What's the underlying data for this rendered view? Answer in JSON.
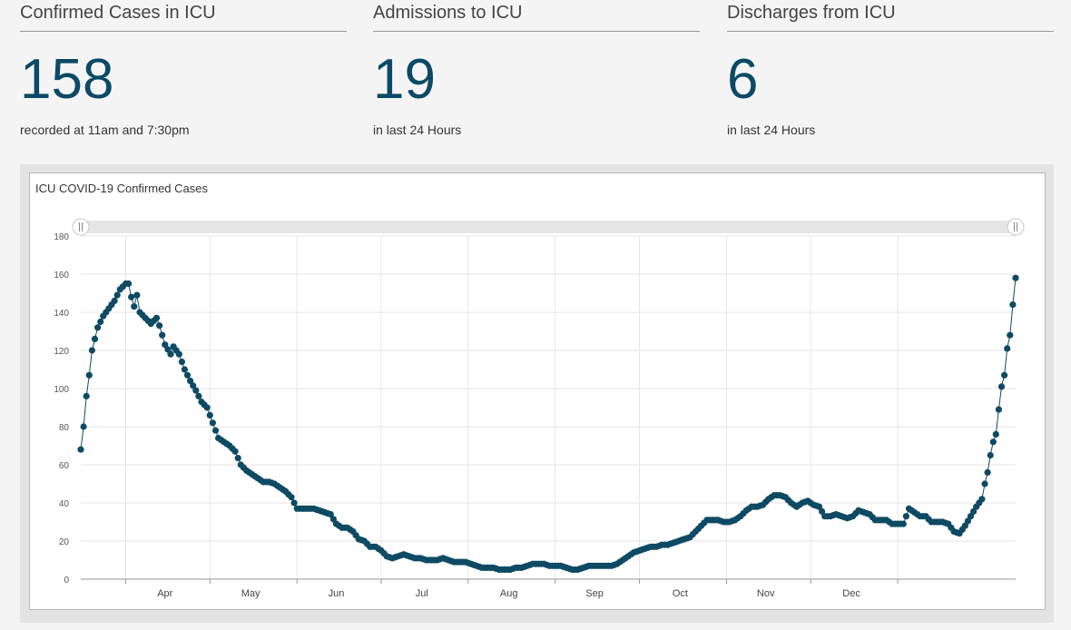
{
  "stats": [
    {
      "title": "Confirmed Cases in ICU",
      "value": "158",
      "subtitle": "recorded at 11am and 7:30pm"
    },
    {
      "title": "Admissions to ICU",
      "value": "19",
      "subtitle": "in last 24 Hours"
    },
    {
      "title": "Discharges from ICU",
      "value": "6",
      "subtitle": "in last 24 Hours"
    }
  ],
  "chart": {
    "title": "ICU COVID-19 Confirmed Cases"
  },
  "colors": {
    "accent": "#0b4a66",
    "marker": "#0e4a63",
    "grid": "#e6e6e6",
    "scrollbar": "#e6e6e6"
  },
  "chart_data": {
    "type": "line",
    "title": "ICU COVID-19 Confirmed Cases",
    "xlabel": "",
    "ylabel": "",
    "ylim": [
      0,
      180
    ],
    "y_ticks": [
      0,
      20,
      40,
      60,
      80,
      100,
      120,
      140,
      160,
      180
    ],
    "x_tick_labels": [
      "Apr",
      "May",
      "Jun",
      "Jul",
      "Aug",
      "Sep",
      "Oct",
      "Nov",
      "Dec"
    ],
    "grid": true,
    "markers": true,
    "anchors": [
      [
        0,
        68
      ],
      [
        1,
        80
      ],
      [
        2,
        96
      ],
      [
        3,
        107
      ],
      [
        4,
        120
      ],
      [
        6,
        132
      ],
      [
        8,
        138
      ],
      [
        10,
        142
      ],
      [
        12,
        146
      ],
      [
        14,
        152
      ],
      [
        16,
        155
      ],
      [
        17,
        155
      ],
      [
        18,
        148
      ],
      [
        19,
        143
      ],
      [
        20,
        149
      ],
      [
        21,
        140
      ],
      [
        23,
        137
      ],
      [
        25,
        134
      ],
      [
        27,
        137
      ],
      [
        28,
        133
      ],
      [
        30,
        123
      ],
      [
        32,
        118
      ],
      [
        33,
        122
      ],
      [
        35,
        118
      ],
      [
        37,
        110
      ],
      [
        39,
        104
      ],
      [
        41,
        99
      ],
      [
        43,
        93
      ],
      [
        45,
        90
      ],
      [
        47,
        82
      ],
      [
        49,
        74
      ],
      [
        51,
        72
      ],
      [
        53,
        70
      ],
      [
        55,
        67
      ],
      [
        57,
        60
      ],
      [
        59,
        57
      ],
      [
        61,
        55
      ],
      [
        63,
        53
      ],
      [
        65,
        51
      ],
      [
        67,
        51
      ],
      [
        69,
        50
      ],
      [
        71,
        48
      ],
      [
        73,
        46
      ],
      [
        75,
        43
      ],
      [
        77,
        37
      ],
      [
        79,
        37
      ],
      [
        81,
        37
      ],
      [
        83,
        37
      ],
      [
        85,
        36
      ],
      [
        87,
        35
      ],
      [
        89,
        34
      ],
      [
        91,
        29
      ],
      [
        93,
        27
      ],
      [
        95,
        27
      ],
      [
        97,
        25
      ],
      [
        99,
        21
      ],
      [
        101,
        20
      ],
      [
        103,
        17
      ],
      [
        105,
        17
      ],
      [
        107,
        15
      ],
      [
        109,
        12
      ],
      [
        111,
        11
      ],
      [
        113,
        12
      ],
      [
        115,
        13
      ],
      [
        117,
        12
      ],
      [
        119,
        11
      ],
      [
        121,
        11
      ],
      [
        123,
        10
      ],
      [
        125,
        10
      ],
      [
        127,
        10
      ],
      [
        129,
        11
      ],
      [
        131,
        10
      ],
      [
        133,
        9
      ],
      [
        135,
        9
      ],
      [
        137,
        9
      ],
      [
        139,
        8
      ],
      [
        141,
        7
      ],
      [
        143,
        6
      ],
      [
        145,
        6
      ],
      [
        147,
        6
      ],
      [
        149,
        5
      ],
      [
        151,
        5
      ],
      [
        153,
        5
      ],
      [
        155,
        6
      ],
      [
        157,
        6
      ],
      [
        159,
        7
      ],
      [
        161,
        8
      ],
      [
        163,
        8
      ],
      [
        165,
        8
      ],
      [
        167,
        7
      ],
      [
        169,
        7
      ],
      [
        171,
        7
      ],
      [
        173,
        6
      ],
      [
        175,
        5
      ],
      [
        177,
        5
      ],
      [
        179,
        6
      ],
      [
        181,
        7
      ],
      [
        183,
        7
      ],
      [
        185,
        7
      ],
      [
        187,
        7
      ],
      [
        189,
        7
      ],
      [
        191,
        8
      ],
      [
        193,
        10
      ],
      [
        195,
        12
      ],
      [
        197,
        14
      ],
      [
        199,
        15
      ],
      [
        201,
        16
      ],
      [
        203,
        17
      ],
      [
        205,
        17
      ],
      [
        207,
        18
      ],
      [
        209,
        18
      ],
      [
        211,
        19
      ],
      [
        213,
        20
      ],
      [
        215,
        21
      ],
      [
        217,
        22
      ],
      [
        219,
        25
      ],
      [
        221,
        28
      ],
      [
        223,
        31
      ],
      [
        225,
        31
      ],
      [
        227,
        31
      ],
      [
        229,
        30
      ],
      [
        231,
        30
      ],
      [
        233,
        31
      ],
      [
        235,
        33
      ],
      [
        237,
        36
      ],
      [
        239,
        38
      ],
      [
        241,
        38
      ],
      [
        243,
        39
      ],
      [
        245,
        42
      ],
      [
        247,
        44
      ],
      [
        249,
        44
      ],
      [
        251,
        43
      ],
      [
        253,
        40
      ],
      [
        255,
        38
      ],
      [
        257,
        40
      ],
      [
        259,
        41
      ],
      [
        261,
        39
      ],
      [
        263,
        38
      ],
      [
        265,
        33
      ],
      [
        267,
        33
      ],
      [
        269,
        34
      ],
      [
        271,
        33
      ],
      [
        273,
        32
      ],
      [
        275,
        33
      ],
      [
        277,
        36
      ],
      [
        279,
        35
      ],
      [
        281,
        34
      ],
      [
        283,
        31
      ],
      [
        285,
        31
      ],
      [
        287,
        31
      ],
      [
        289,
        29
      ],
      [
        291,
        29
      ],
      [
        293,
        29
      ],
      [
        295,
        37
      ],
      [
        297,
        35
      ],
      [
        299,
        33
      ],
      [
        301,
        33
      ],
      [
        303,
        30
      ],
      [
        305,
        30
      ],
      [
        307,
        30
      ],
      [
        309,
        29
      ],
      [
        311,
        25
      ],
      [
        313,
        24
      ],
      [
        315,
        28
      ],
      [
        317,
        33
      ],
      [
        319,
        38
      ],
      [
        321,
        42
      ],
      [
        322,
        50
      ],
      [
        323,
        56
      ],
      [
        324,
        65
      ],
      [
        325,
        72
      ],
      [
        326,
        76
      ],
      [
        327,
        89
      ],
      [
        328,
        101
      ],
      [
        329,
        107
      ],
      [
        330,
        121
      ],
      [
        331,
        128
      ],
      [
        332,
        144
      ],
      [
        333,
        158
      ]
    ]
  }
}
